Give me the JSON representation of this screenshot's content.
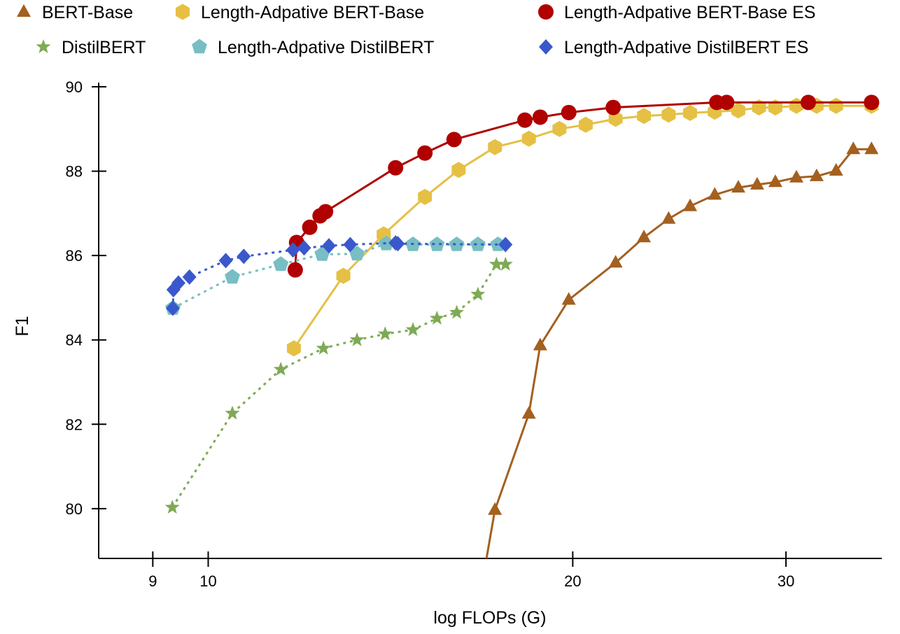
{
  "chart_data": {
    "type": "line",
    "title": "",
    "xlabel": "log FLOPs (G)",
    "ylabel": "F1",
    "xscale": "log",
    "xlim": [
      8.12,
      35.9
    ],
    "ylim": [
      78.82,
      90.2
    ],
    "xticks": [
      9,
      10,
      20,
      30
    ],
    "yticks": [
      80,
      82,
      84,
      86,
      88,
      90
    ],
    "grid": false,
    "legend_position": "top",
    "series": [
      {
        "name": "BERT-Base",
        "color": "#a3601f",
        "marker": "triangle",
        "line": "solid",
        "x": [
          16.9,
          17.25,
          18.4,
          18.8,
          19.85,
          21.7,
          22.9,
          24.0,
          25.0,
          26.2,
          27.4,
          28.4,
          29.4,
          30.6,
          31.8,
          33.0,
          34.1,
          35.3
        ],
        "y": [
          78.5,
          79.97,
          82.25,
          83.87,
          84.95,
          85.83,
          86.43,
          86.87,
          87.17,
          87.44,
          87.61,
          87.68,
          87.74,
          87.85,
          87.88,
          88.01,
          88.52,
          88.52
        ]
      },
      {
        "name": "Length-Adpative BERT-Base",
        "color": "#e5c044",
        "marker": "hexagon",
        "line": "solid",
        "x": [
          11.77,
          12.93,
          13.96,
          15.1,
          16.1,
          17.25,
          18.4,
          19.5,
          20.5,
          21.7,
          22.9,
          24.0,
          25.0,
          26.2,
          27.4,
          28.5,
          29.4,
          30.6,
          31.8,
          33.0,
          35.3
        ],
        "y": [
          83.8,
          85.52,
          86.5,
          87.39,
          88.03,
          88.57,
          88.77,
          89.0,
          89.1,
          89.24,
          89.31,
          89.34,
          89.38,
          89.41,
          89.44,
          89.51,
          89.51,
          89.55,
          89.55,
          89.55,
          89.55
        ]
      },
      {
        "name": "Length-Adpative BERT-Base ES",
        "color": "#b00000",
        "marker": "circle",
        "line": "solid",
        "x": [
          11.8,
          11.83,
          12.13,
          12.37,
          12.5,
          14.28,
          15.1,
          15.96,
          18.26,
          18.8,
          19.85,
          21.6,
          26.3,
          26.8,
          31.3,
          35.3
        ],
        "y": [
          85.66,
          86.31,
          86.67,
          86.94,
          87.04,
          88.08,
          88.43,
          88.75,
          89.21,
          89.28,
          89.39,
          89.51,
          89.63,
          89.63,
          89.63,
          89.63
        ]
      },
      {
        "name": "DistilBERT",
        "color": "#7faa55",
        "marker": "star",
        "line": "dotted",
        "x": [
          9.34,
          10.47,
          11.48,
          12.45,
          13.27,
          14.0,
          14.76,
          15.45,
          16.04,
          16.7,
          17.3,
          17.6
        ],
        "y": [
          80.03,
          82.26,
          83.3,
          83.8,
          84.0,
          84.14,
          84.24,
          84.51,
          84.65,
          85.08,
          85.79,
          85.79
        ]
      },
      {
        "name": "Length-Adpative DistilBERT",
        "color": "#78bec4",
        "marker": "pentagon",
        "line": "dotted",
        "x": [
          9.35,
          10.47,
          11.48,
          12.42,
          13.27,
          14.03,
          14.76,
          15.45,
          16.04,
          16.7,
          17.35
        ],
        "y": [
          84.75,
          85.49,
          85.79,
          86.03,
          86.04,
          86.28,
          86.26,
          86.26,
          86.26,
          86.26,
          86.26
        ]
      },
      {
        "name": "Length-Adpative DistilBERT ES",
        "color": "#3a58cc",
        "marker": "diamond",
        "line": "dotted",
        "x": [
          9.35,
          9.36,
          9.45,
          9.65,
          10.34,
          10.7,
          11.75,
          12.0,
          12.58,
          13.1,
          14.28,
          14.34,
          17.6
        ],
        "y": [
          84.75,
          85.19,
          85.35,
          85.49,
          85.88,
          85.98,
          86.13,
          86.18,
          86.23,
          86.26,
          86.3,
          86.28,
          86.26
        ]
      }
    ]
  }
}
